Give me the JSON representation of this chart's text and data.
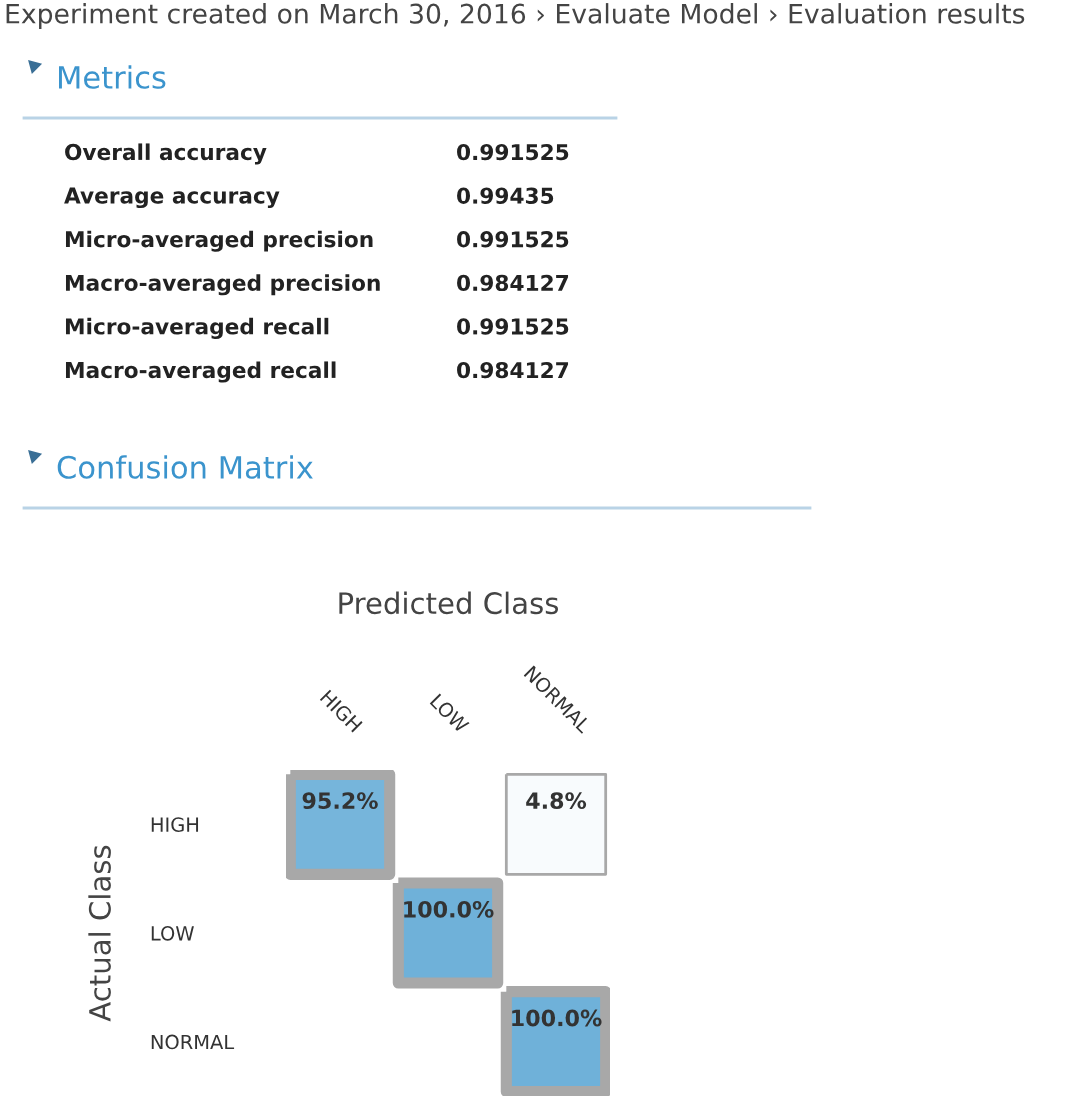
{
  "chart_data": [
    {
      "type": "other",
      "title": "Metrics",
      "annotations": [
        "Experiment created on March 30, 2016 › Evaluate Model › Evaluation results"
      ],
      "categories": [
        "Overall accuracy",
        "Average accuracy",
        "Micro-averaged precision",
        "Macro-averaged precision",
        "Micro-averaged recall",
        "Macro-averaged recall"
      ],
      "values": [
        0.991525,
        0.99435,
        0.991525,
        0.984127,
        0.991525,
        0.984127
      ],
      "data_labels": true
    },
    {
      "type": "heatmap",
      "title": "Confusion Matrix",
      "xlabel": "Predicted Class",
      "ylabel": "Actual Class",
      "categories": [
        "HIGH",
        "LOW",
        "NORMAL"
      ],
      "y_categories": [
        "HIGH",
        "LOW",
        "NORMAL"
      ],
      "cells": [
        [
          95.2,
          null,
          4.8
        ],
        [
          null,
          100.0,
          null
        ],
        [
          null,
          null,
          100.0
        ]
      ],
      "cell_labels": [
        [
          "95.2%",
          null,
          "4.8%"
        ],
        [
          null,
          "100.0%",
          null
        ],
        [
          null,
          null,
          "100.0%"
        ]
      ]
    }
  ]
}
